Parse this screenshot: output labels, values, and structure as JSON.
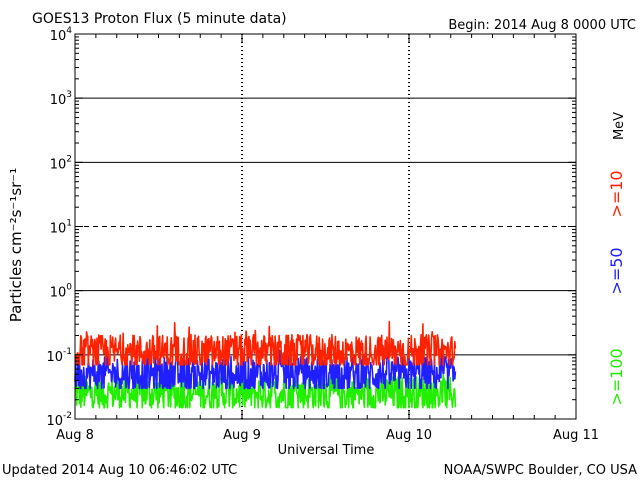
{
  "chart_data": {
    "type": "line",
    "title": "GOES13 Proton Flux (5 minute data)",
    "begin": "Begin: 2014 Aug 8 0000 UTC",
    "xlabel": "Universal Time",
    "ylabel": "Particles cm⁻²s⁻¹sr⁻¹",
    "x_ticks": [
      "Aug 8",
      "Aug 9",
      "Aug 10",
      "Aug 11"
    ],
    "x_range_days": [
      0,
      3
    ],
    "y_scale": "log",
    "y_range": [
      0.01,
      10000
    ],
    "y_ticks": [
      {
        "base": "10",
        "exp": "-2"
      },
      {
        "base": "10",
        "exp": "-1"
      },
      {
        "base": "10",
        "exp": "0"
      },
      {
        "base": "10",
        "exp": "1"
      },
      {
        "base": "10",
        "exp": "2"
      },
      {
        "base": "10",
        "exp": "3"
      },
      {
        "base": "10",
        "exp": "4"
      }
    ],
    "data_end_day": 2.28,
    "unit_label": "MeV",
    "series": [
      {
        "name": ">=10",
        "color": "#ff2200",
        "typical": 0.11,
        "min": 0.07,
        "max": 0.35
      },
      {
        "name": ">=50",
        "color": "#2020ff",
        "typical": 0.05,
        "min": 0.03,
        "max": 0.12
      },
      {
        "name": ">=100",
        "color": "#22ee00",
        "typical": 0.025,
        "min": 0.015,
        "max": 0.06
      }
    ]
  },
  "footer": {
    "updated": "Updated 2014 Aug 10 06:46:02 UTC",
    "credit": "NOAA/SWPC Boulder, CO USA"
  }
}
